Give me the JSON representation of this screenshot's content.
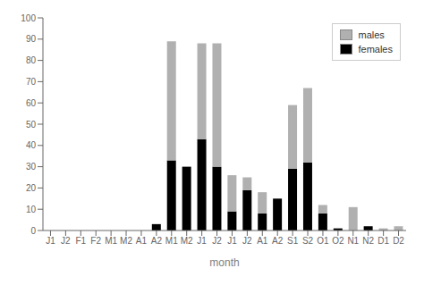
{
  "chart_data": {
    "type": "bar",
    "stacked": true,
    "categories": [
      "J1",
      "J2",
      "F1",
      "F2",
      "M1",
      "M2",
      "A1",
      "A2",
      "M1",
      "M2",
      "J1",
      "J2",
      "J1",
      "J2",
      "A1",
      "A2",
      "S1",
      "S2",
      "O1",
      "O2",
      "N1",
      "N2",
      "D1",
      "D2"
    ],
    "series": [
      {
        "name": "females",
        "color": "#000000",
        "values": [
          0,
          0,
          0,
          0,
          0,
          0,
          0,
          3,
          33,
          30,
          43,
          30,
          9,
          19,
          8,
          15,
          29,
          32,
          8,
          1,
          0,
          2,
          0,
          0
        ]
      },
      {
        "name": "males",
        "color": "#b0b0b0",
        "values": [
          0,
          0,
          0,
          0,
          0,
          0,
          0,
          0,
          56,
          0,
          45,
          58,
          17,
          6,
          10,
          0,
          30,
          35,
          4,
          0,
          11,
          0,
          1,
          2
        ]
      }
    ],
    "xlabel": "month",
    "ylim": [
      0,
      100
    ],
    "yticks": [
      0,
      10,
      20,
      30,
      40,
      50,
      60,
      70,
      80,
      90,
      100
    ],
    "legend": "upper right",
    "grid": false
  }
}
